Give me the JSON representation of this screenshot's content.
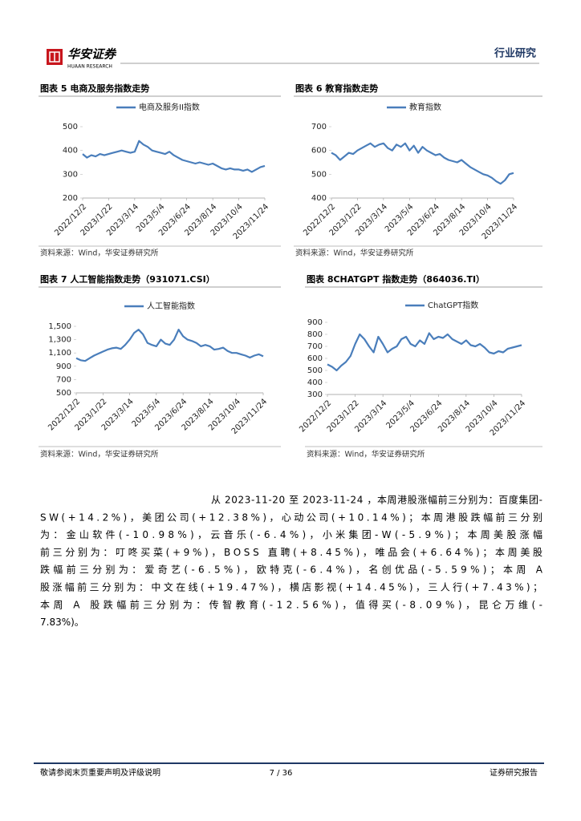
{
  "header": {
    "brand": "华安证券",
    "brand_en": "HUAAN RESEARCH",
    "section": "行业研究"
  },
  "chart_data": [
    {
      "type": "line",
      "title": "图表 5 电商及服务指数走势",
      "source": "资料来源：Wind，华安证券研究所",
      "categories": [
        "2022/12/2",
        null,
        null,
        null,
        null,
        null,
        "2023/1/22",
        null,
        null,
        null,
        null,
        null,
        "2023/3/14",
        null,
        null,
        null,
        null,
        null,
        "2023/5/4",
        null,
        null,
        null,
        null,
        null,
        "2023/6/24",
        null,
        null,
        null,
        null,
        null,
        "2023/8/14",
        null,
        null,
        null,
        null,
        null,
        "2023/10/4",
        null,
        null,
        null,
        null,
        null,
        "2023/11/24"
      ],
      "series": [
        {
          "name": "电商及服务II指数",
          "color": "#4a7ebb",
          "values": [
            385,
            370,
            380,
            375,
            385,
            380,
            385,
            390,
            395,
            400,
            395,
            390,
            395,
            440,
            425,
            415,
            400,
            395,
            390,
            385,
            395,
            380,
            370,
            360,
            355,
            350,
            345,
            350,
            345,
            340,
            345,
            335,
            325,
            320,
            325,
            320,
            320,
            315,
            320,
            310,
            320,
            330,
            335
          ]
        }
      ],
      "ylim": [
        200,
        500
      ],
      "yticks": [
        200,
        300,
        400,
        500
      ]
    },
    {
      "type": "line",
      "title": "图表 6 教育指数走势",
      "source": "资料来源：Wind，华安证券研究所",
      "categories": [
        "2022/12/2",
        null,
        null,
        null,
        null,
        null,
        "2023/1/22",
        null,
        null,
        null,
        null,
        null,
        "2023/3/14",
        null,
        null,
        null,
        null,
        null,
        "2023/5/4",
        null,
        null,
        null,
        null,
        null,
        "2023/6/24",
        null,
        null,
        null,
        null,
        null,
        "2023/8/14",
        null,
        null,
        null,
        null,
        null,
        "2023/10/4",
        null,
        null,
        null,
        null,
        null,
        "2023/11/24"
      ],
      "series": [
        {
          "name": "教育指数",
          "color": "#4a7ebb",
          "values": [
            590,
            580,
            560,
            575,
            590,
            585,
            600,
            610,
            620,
            630,
            615,
            625,
            630,
            610,
            600,
            625,
            615,
            630,
            600,
            620,
            590,
            615,
            600,
            590,
            580,
            585,
            570,
            560,
            555,
            550,
            560,
            545,
            530,
            520,
            510,
            500,
            495,
            485,
            470,
            460,
            475,
            500,
            505
          ]
        }
      ],
      "ylim": [
        400,
        700
      ],
      "yticks": [
        400,
        500,
        600,
        700
      ]
    },
    {
      "type": "line",
      "title": "图表 7 人工智能指数走势（931071.CSI）",
      "source": "资料来源：Wind，华安证券研究所",
      "categories": [
        "2022/12/2",
        null,
        null,
        null,
        null,
        null,
        "2023/1/22",
        null,
        null,
        null,
        null,
        null,
        "2023/3/14",
        null,
        null,
        null,
        null,
        null,
        "2023/5/4",
        null,
        null,
        null,
        null,
        null,
        "2023/6/24",
        null,
        null,
        null,
        null,
        null,
        "2023/8/14",
        null,
        null,
        null,
        null,
        null,
        "2023/10/4",
        null,
        null,
        null,
        null,
        null,
        "2023/11/24"
      ],
      "series": [
        {
          "name": "人工智能指数",
          "color": "#4a7ebb",
          "values": [
            1020,
            990,
            980,
            1020,
            1060,
            1090,
            1120,
            1150,
            1170,
            1180,
            1160,
            1220,
            1300,
            1400,
            1450,
            1380,
            1250,
            1220,
            1200,
            1300,
            1240,
            1220,
            1300,
            1450,
            1350,
            1300,
            1280,
            1250,
            1200,
            1220,
            1200,
            1150,
            1160,
            1180,
            1130,
            1100,
            1100,
            1080,
            1060,
            1030,
            1060,
            1080,
            1050
          ]
        }
      ],
      "ylim": [
        500,
        1500
      ],
      "yticks": [
        500,
        700,
        900,
        {
          "value": 1100,
          "label": "1,100"
        },
        {
          "value": 1300,
          "label": "1,300"
        },
        {
          "value": 1500,
          "label": "1,500"
        }
      ]
    },
    {
      "type": "line",
      "title": "图表 8CHATGPT 指数走势（864036.TI）",
      "source": "资料来源：Wind，华安证券研究所",
      "categories": [
        "2022/12/2",
        null,
        null,
        null,
        null,
        null,
        "2023/1/22",
        null,
        null,
        null,
        null,
        null,
        "2023/3/14",
        null,
        null,
        null,
        null,
        null,
        "2023/5/4",
        null,
        null,
        null,
        null,
        null,
        "2023/6/24",
        null,
        null,
        null,
        null,
        null,
        "2023/8/14",
        null,
        null,
        null,
        null,
        null,
        "2023/10/4",
        null,
        null,
        null,
        null,
        null,
        "2023/11/24"
      ],
      "series": [
        {
          "name": "ChatGPT指数",
          "color": "#4a7ebb",
          "values": [
            550,
            530,
            500,
            540,
            570,
            620,
            720,
            800,
            760,
            700,
            650,
            780,
            720,
            650,
            680,
            700,
            760,
            780,
            720,
            700,
            750,
            720,
            810,
            760,
            780,
            770,
            800,
            760,
            740,
            720,
            750,
            710,
            700,
            720,
            690,
            650,
            640,
            660,
            650,
            680,
            690,
            700,
            710
          ]
        }
      ],
      "ylim": [
        300,
        900
      ],
      "yticks": [
        300,
        400,
        500,
        600,
        700,
        800,
        900
      ]
    }
  ],
  "body": {
    "lines": [
      "从 2023-11-20 至 2023-11-24 ，本周港股涨幅前三分别为：百度集团-",
      "SW(+14.2%)，美团公司(+12.38%)，心动公司(+10.14%)；本周港股跌幅前三分别",
      "为：金山软件(-10.98%)，云音乐(-6.4%)，小米集团-W(-5.9%)；本周美股涨幅",
      "前三分别为：叮咚买菜(+9%)，BOSS 直聘(+8.45%)，唯品会(+6.64%)；本周美股",
      "跌幅前三分别为：爱奇艺(-6.5%)，欧特克(-6.4%)，名创优品(-5.59%)；本周 A",
      "股涨幅前三分别为：中文在线(+19.47%)，横店影视(+14.45%)，三人行(+7.43%)；",
      "本周 A 股跌幅前三分别为：传智教育(-12.56%)，值得买(-8.09%)，昆仑万维(-",
      "7.83%)。"
    ]
  },
  "footer": {
    "disclaimer": "敬请参阅末页重要声明及评级说明",
    "page": "7 / 36",
    "doc_type": "证券研究报告"
  }
}
